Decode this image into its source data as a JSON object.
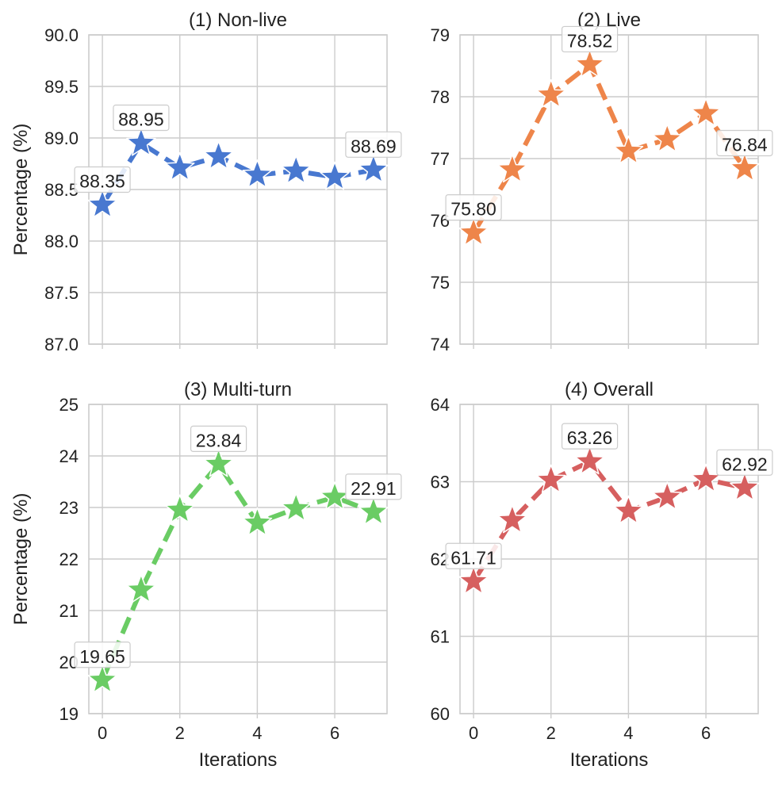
{
  "chart_data": [
    {
      "type": "line",
      "title": "(1) Non-live",
      "xlabel": "",
      "ylabel": "Percentage (%)",
      "x": [
        0,
        1,
        2,
        3,
        4,
        5,
        6,
        7
      ],
      "values": [
        88.35,
        88.95,
        88.71,
        88.82,
        88.64,
        88.68,
        88.62,
        88.69
      ],
      "ylim": [
        87.0,
        90.0
      ],
      "yticks": [
        "87.0",
        "87.5",
        "88.0",
        "88.5",
        "89.0",
        "89.5",
        "90.0"
      ],
      "xticks": [
        "0",
        "2",
        "4",
        "6"
      ],
      "show_xtick_labels": false,
      "annotations": [
        {
          "x": 0,
          "y": 88.35,
          "text": "88.35"
        },
        {
          "x": 1,
          "y": 88.95,
          "text": "88.95"
        },
        {
          "x": 7,
          "y": 88.69,
          "text": "88.69"
        }
      ],
      "color": "#4878d0",
      "grid": true
    },
    {
      "type": "line",
      "title": "(2) Live",
      "xlabel": "",
      "ylabel": "",
      "x": [
        0,
        1,
        2,
        3,
        4,
        5,
        6,
        7
      ],
      "values": [
        75.8,
        76.82,
        78.03,
        78.52,
        77.12,
        77.31,
        77.73,
        76.84
      ],
      "ylim": [
        74,
        79
      ],
      "yticks": [
        "74",
        "75",
        "76",
        "77",
        "78",
        "79"
      ],
      "xticks": [
        "0",
        "2",
        "4",
        "6"
      ],
      "show_xtick_labels": false,
      "annotations": [
        {
          "x": 0,
          "y": 75.8,
          "text": "75.80"
        },
        {
          "x": 3,
          "y": 78.52,
          "text": "78.52"
        },
        {
          "x": 7,
          "y": 76.84,
          "text": "76.84"
        }
      ],
      "color": "#ee854a",
      "grid": true
    },
    {
      "type": "line",
      "title": "(3) Multi-turn",
      "xlabel": "Iterations",
      "ylabel": "Percentage (%)",
      "x": [
        0,
        1,
        2,
        3,
        4,
        5,
        6,
        7
      ],
      "values": [
        19.65,
        21.4,
        22.95,
        23.84,
        22.7,
        22.98,
        23.2,
        22.91
      ],
      "ylim": [
        19,
        25
      ],
      "yticks": [
        "19",
        "20",
        "21",
        "22",
        "23",
        "24",
        "25"
      ],
      "xticks": [
        "0",
        "2",
        "4",
        "6"
      ],
      "show_xtick_labels": true,
      "annotations": [
        {
          "x": 0,
          "y": 19.65,
          "text": "19.65"
        },
        {
          "x": 3,
          "y": 23.84,
          "text": "23.84"
        },
        {
          "x": 7,
          "y": 22.91,
          "text": "22.91"
        }
      ],
      "color": "#6acc64",
      "grid": true
    },
    {
      "type": "line",
      "title": "(4) Overall",
      "xlabel": "Iterations",
      "ylabel": "",
      "x": [
        0,
        1,
        2,
        3,
        4,
        5,
        6,
        7
      ],
      "values": [
        61.71,
        62.5,
        63.02,
        63.26,
        62.62,
        62.8,
        63.03,
        62.92
      ],
      "ylim": [
        60,
        64
      ],
      "yticks": [
        "60",
        "61",
        "62",
        "63",
        "64"
      ],
      "xticks": [
        "0",
        "2",
        "4",
        "6"
      ],
      "show_xtick_labels": true,
      "annotations": [
        {
          "x": 0,
          "y": 61.71,
          "text": "61.71"
        },
        {
          "x": 3,
          "y": 63.26,
          "text": "63.26"
        },
        {
          "x": 7,
          "y": 62.92,
          "text": "62.92"
        }
      ],
      "color": "#d65f5f",
      "grid": true
    }
  ]
}
